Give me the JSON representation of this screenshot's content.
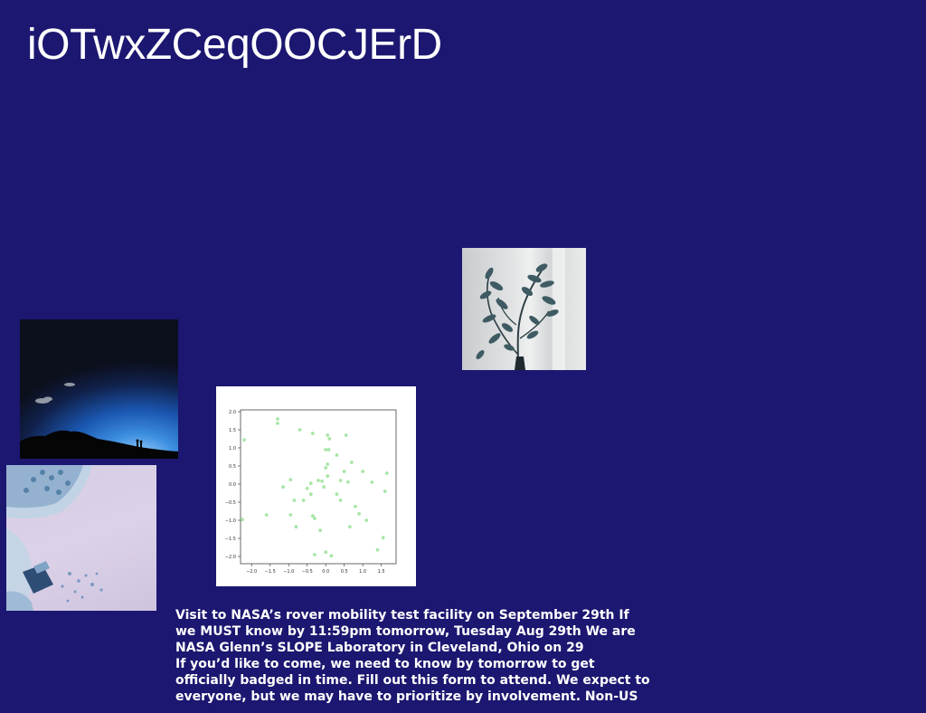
{
  "page": {
    "title": "iOTwxZCeqOOCJErD",
    "background_color": "#1c1770"
  },
  "images": {
    "night_sky": "night-sky-silhouette-photo",
    "plant": "eucalyptus-plant-photo",
    "still_life": "lavender-still-life-photo",
    "scatter_plot": "scatter-plot-figure"
  },
  "chart_data": {
    "type": "scatter",
    "title": "",
    "xlabel": "",
    "ylabel": "",
    "xlim": [
      -2.3,
      1.9
    ],
    "ylim": [
      -2.2,
      2.05
    ],
    "xticks": [
      "−2.0",
      "−1.5",
      "−1.0",
      "−0.5",
      "0.0",
      "0.5",
      "1.0",
      "1.5"
    ],
    "yticks": [
      "2.0",
      "1.5",
      "1.0",
      "0.5",
      "0.0",
      "−0.5",
      "−1.0",
      "−1.5",
      "−2.0"
    ],
    "grid": false,
    "marker_color": "#9ee39e",
    "points": [
      [
        -1.3,
        1.8
      ],
      [
        -1.3,
        1.68
      ],
      [
        -2.2,
        1.22
      ],
      [
        -0.7,
        1.5
      ],
      [
        -0.35,
        1.4
      ],
      [
        0.05,
        1.35
      ],
      [
        0.1,
        1.25
      ],
      [
        0.55,
        1.35
      ],
      [
        0.0,
        0.95
      ],
      [
        0.08,
        0.95
      ],
      [
        0.3,
        0.8
      ],
      [
        0.7,
        0.6
      ],
      [
        0.05,
        0.55
      ],
      [
        0.0,
        0.45
      ],
      [
        0.5,
        0.35
      ],
      [
        1.0,
        0.35
      ],
      [
        1.65,
        0.3
      ],
      [
        0.05,
        0.22
      ],
      [
        -0.95,
        0.12
      ],
      [
        -0.2,
        0.1
      ],
      [
        -0.1,
        0.08
      ],
      [
        0.4,
        0.1
      ],
      [
        0.6,
        0.06
      ],
      [
        1.25,
        0.05
      ],
      [
        -0.4,
        0.02
      ],
      [
        -1.15,
        -0.08
      ],
      [
        -0.5,
        -0.12
      ],
      [
        -0.05,
        -0.08
      ],
      [
        -0.4,
        -0.28
      ],
      [
        0.3,
        -0.28
      ],
      [
        1.6,
        -0.2
      ],
      [
        -0.85,
        -0.45
      ],
      [
        -0.6,
        -0.45
      ],
      [
        0.4,
        -0.45
      ],
      [
        0.8,
        -0.62
      ],
      [
        0.9,
        -0.82
      ],
      [
        -1.6,
        -0.85
      ],
      [
        -0.95,
        -0.85
      ],
      [
        -0.35,
        -0.88
      ],
      [
        -0.3,
        -0.95
      ],
      [
        1.1,
        -1.0
      ],
      [
        -2.25,
        -0.98
      ],
      [
        -0.8,
        -1.18
      ],
      [
        0.65,
        -1.18
      ],
      [
        -0.15,
        -1.28
      ],
      [
        1.55,
        -1.48
      ],
      [
        1.4,
        -1.82
      ],
      [
        0.0,
        -1.88
      ],
      [
        -0.3,
        -1.95
      ],
      [
        0.15,
        -1.98
      ]
    ]
  },
  "announcement": {
    "lines": [
      "Visit to NASA’s rover mobility test facility on September 29th If",
      "we MUST know by 11:59pm tomorrow, Tuesday Aug 29th We are",
      "NASA Glenn’s SLOPE Laboratory in Cleveland, Ohio on 29",
      "If you’d like to come, we need to know by tomorrow to get",
      "officially badged in time. Fill out this form to attend. We expect to",
      "everyone, but we may have to prioritize by involvement. Non-US"
    ]
  }
}
